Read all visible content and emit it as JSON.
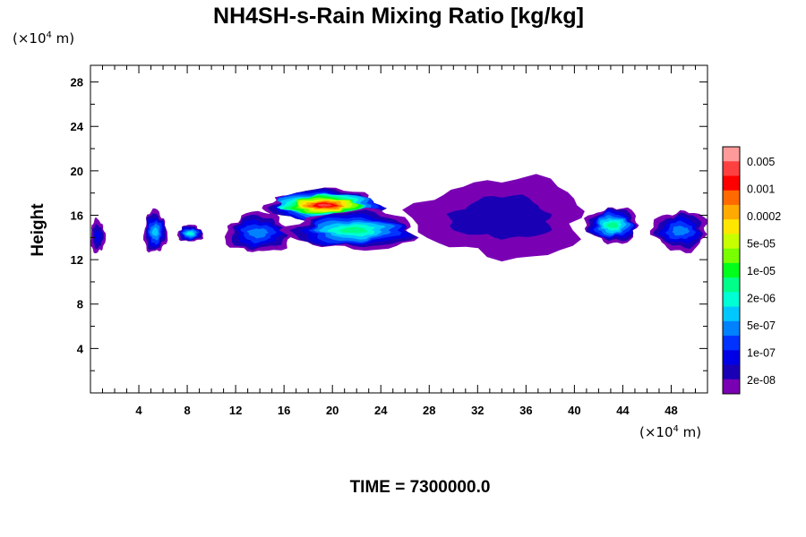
{
  "chart_data": {
    "type": "heatmap",
    "title": "NH4SH-s-Rain Mixing Ratio [kg/kg]",
    "xlabel": "",
    "ylabel": "Height",
    "x_unit": {
      "prefix": "(×10",
      "exp": "4",
      "suffix": " m)"
    },
    "y_unit": {
      "prefix": "(×10",
      "exp": "4",
      "suffix": " m)"
    },
    "xlim": [
      0,
      51
    ],
    "ylim": [
      0,
      29.5
    ],
    "x_ticks": [
      "4",
      "8",
      "12",
      "16",
      "20",
      "24",
      "28",
      "32",
      "36",
      "40",
      "44",
      "48"
    ],
    "y_ticks": [
      "4",
      "8",
      "12",
      "16",
      "20",
      "24",
      "28"
    ],
    "colorbar": {
      "labels": [
        "0.005",
        "0.001",
        "0.0002",
        "5e-05",
        "1e-05",
        "2e-06",
        "5e-07",
        "1e-07",
        "2e-08"
      ],
      "colors": [
        "#ff9a9a",
        "#ff4040",
        "#ff0000",
        "#ff6a00",
        "#ffaa00",
        "#ffe600",
        "#c8ff00",
        "#78ff00",
        "#00ff1a",
        "#00ff8a",
        "#00ffd5",
        "#00c8ff",
        "#0082ff",
        "#0033ff",
        "#0000e6",
        "#1a00b4",
        "#7a00b4"
      ]
    },
    "regions": [
      {
        "x": [
          0,
          1.2
        ],
        "y": [
          12.6,
          15.6
        ],
        "max_level": 14
      },
      {
        "x": [
          4.4,
          6.3
        ],
        "y": [
          12.6,
          16.4
        ],
        "max_level": 11
      },
      {
        "x": [
          7.2,
          9.3
        ],
        "y": [
          13.6,
          15.1
        ],
        "max_level": 10
      },
      {
        "x": [
          11.2,
          16.5
        ],
        "y": [
          12.6,
          16.2
        ],
        "max_level": 12
      },
      {
        "x": [
          14.7,
          24
        ],
        "y": [
          15.5,
          18.3
        ],
        "max_level": 1
      },
      {
        "x": [
          16.5,
          27
        ],
        "y": [
          12.9,
          16.4
        ],
        "max_level": 9
      },
      {
        "x": [
          27,
          41
        ],
        "y": [
          12.2,
          19.3
        ],
        "max_level": 15
      },
      {
        "x": [
          41,
          45.3
        ],
        "y": [
          13.5,
          16.7
        ],
        "max_level": 9
      },
      {
        "x": [
          46.5,
          51
        ],
        "y": [
          12.8,
          16.4
        ],
        "max_level": 12
      }
    ]
  },
  "time_label": "TIME = 7300000.0"
}
